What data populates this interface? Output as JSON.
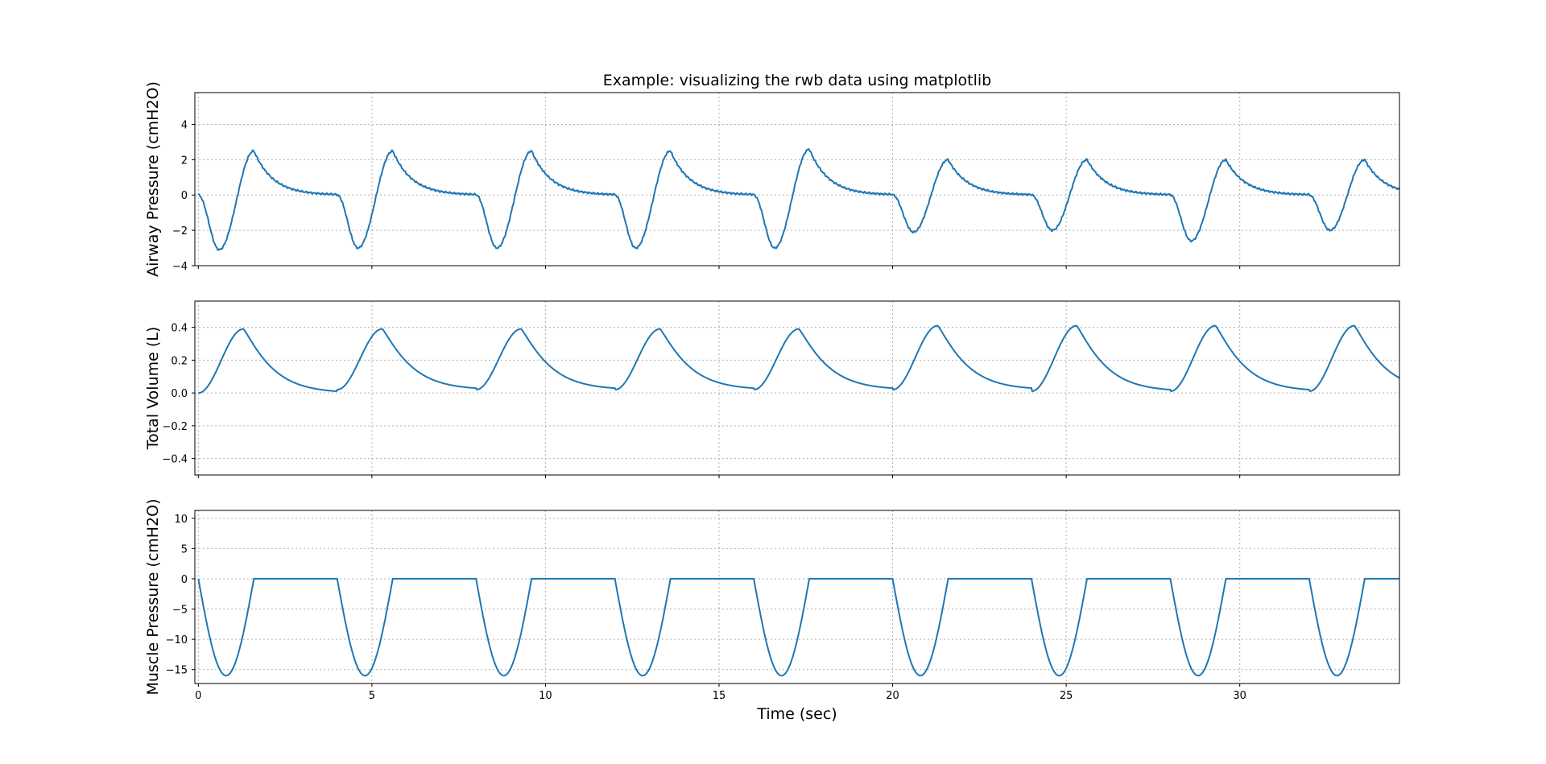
{
  "chart_data": {
    "type": "line",
    "title": "Example: visualizing the rwb data using matplotlib",
    "xlabel": "Time (sec)",
    "xlim": [
      -0.1,
      34.6
    ],
    "xticks": [
      0,
      5,
      10,
      15,
      20,
      25,
      30
    ],
    "grid": true,
    "line_color": "#1f77b4",
    "breath_period_sec": 4.0,
    "panels": [
      {
        "ylabel": "Airway Pressure (cmH2O)",
        "ylim": [
          -4,
          5.8
        ],
        "yticks": [
          -4,
          -2,
          0,
          2,
          4
        ],
        "series": [
          {
            "values_by_breath": [
              {
                "start": 0,
                "trough": -3.1,
                "trough_t": 0.6,
                "peak": 2.5,
                "peak_t": 1.6
              },
              {
                "start": 4,
                "trough": -3.0,
                "trough_t": 4.6,
                "peak": 2.5,
                "peak_t": 5.6
              },
              {
                "start": 8,
                "trough": -3.0,
                "trough_t": 8.6,
                "peak": 2.5,
                "peak_t": 9.6
              },
              {
                "start": 12,
                "trough": -3.0,
                "trough_t": 12.6,
                "peak": 2.5,
                "peak_t": 13.6
              },
              {
                "start": 16,
                "trough": -3.0,
                "trough_t": 16.6,
                "peak": 2.6,
                "peak_t": 17.6
              },
              {
                "start": 20,
                "trough": -2.1,
                "trough_t": 20.6,
                "peak": 2.0,
                "peak_t": 21.6
              },
              {
                "start": 24,
                "trough": -2.0,
                "trough_t": 24.6,
                "peak": 2.0,
                "peak_t": 25.6
              },
              {
                "start": 28,
                "trough": -2.6,
                "trough_t": 28.6,
                "peak": 2.0,
                "peak_t": 29.6
              },
              {
                "start": 32,
                "trough": -2.0,
                "trough_t": 32.6,
                "peak": 2.0,
                "peak_t": 33.6
              }
            ],
            "end_value": 0.25
          }
        ]
      },
      {
        "ylabel": "Total Volume (L)",
        "ylim": [
          -0.5,
          0.56
        ],
        "yticks": [
          -0.4,
          -0.2,
          0.0,
          0.2,
          0.4
        ],
        "series": [
          {
            "values_by_breath": [
              {
                "start": 0,
                "base": 0.0,
                "peak": 0.39,
                "peak_t": 1.3
              },
              {
                "start": 4,
                "base": 0.02,
                "peak": 0.39,
                "peak_t": 5.3
              },
              {
                "start": 8,
                "base": 0.02,
                "peak": 0.39,
                "peak_t": 9.3
              },
              {
                "start": 12,
                "base": 0.02,
                "peak": 0.39,
                "peak_t": 13.3
              },
              {
                "start": 16,
                "base": 0.02,
                "peak": 0.39,
                "peak_t": 17.3
              },
              {
                "start": 20,
                "base": 0.02,
                "peak": 0.41,
                "peak_t": 21.3
              },
              {
                "start": 24,
                "base": 0.01,
                "peak": 0.41,
                "peak_t": 25.3
              },
              {
                "start": 28,
                "base": 0.01,
                "peak": 0.41,
                "peak_t": 29.3
              },
              {
                "start": 32,
                "base": 0.01,
                "peak": 0.41,
                "peak_t": 33.3
              }
            ],
            "end_value": 0.09
          }
        ]
      },
      {
        "ylabel": "Muscle Pressure (cmH2O)",
        "ylim": [
          -17.3,
          11.3
        ],
        "yticks": [
          -15,
          -10,
          -5,
          0,
          5,
          10
        ],
        "series": [
          {
            "values_by_breath": [
              {
                "start": 0,
                "trough": -16.0,
                "trough_t": 0.8,
                "plateau": 0,
                "return_t": 1.6
              },
              {
                "start": 4,
                "trough": -16.0,
                "trough_t": 4.8,
                "plateau": 0,
                "return_t": 5.6
              },
              {
                "start": 8,
                "trough": -16.0,
                "trough_t": 8.8,
                "plateau": 0,
                "return_t": 9.6
              },
              {
                "start": 12,
                "trough": -16.0,
                "trough_t": 12.8,
                "plateau": 0,
                "return_t": 13.6
              },
              {
                "start": 16,
                "trough": -16.0,
                "trough_t": 16.8,
                "plateau": 0,
                "return_t": 17.6
              },
              {
                "start": 20,
                "trough": -16.0,
                "trough_t": 20.8,
                "plateau": 0,
                "return_t": 21.6
              },
              {
                "start": 24,
                "trough": -16.0,
                "trough_t": 24.8,
                "plateau": 0,
                "return_t": 25.6
              },
              {
                "start": 28,
                "trough": -16.0,
                "trough_t": 28.8,
                "plateau": 0,
                "return_t": 29.6
              },
              {
                "start": 32,
                "trough": -16.0,
                "trough_t": 32.8,
                "plateau": 0,
                "return_t": 33.6
              }
            ],
            "end_value": 0
          }
        ]
      }
    ]
  }
}
